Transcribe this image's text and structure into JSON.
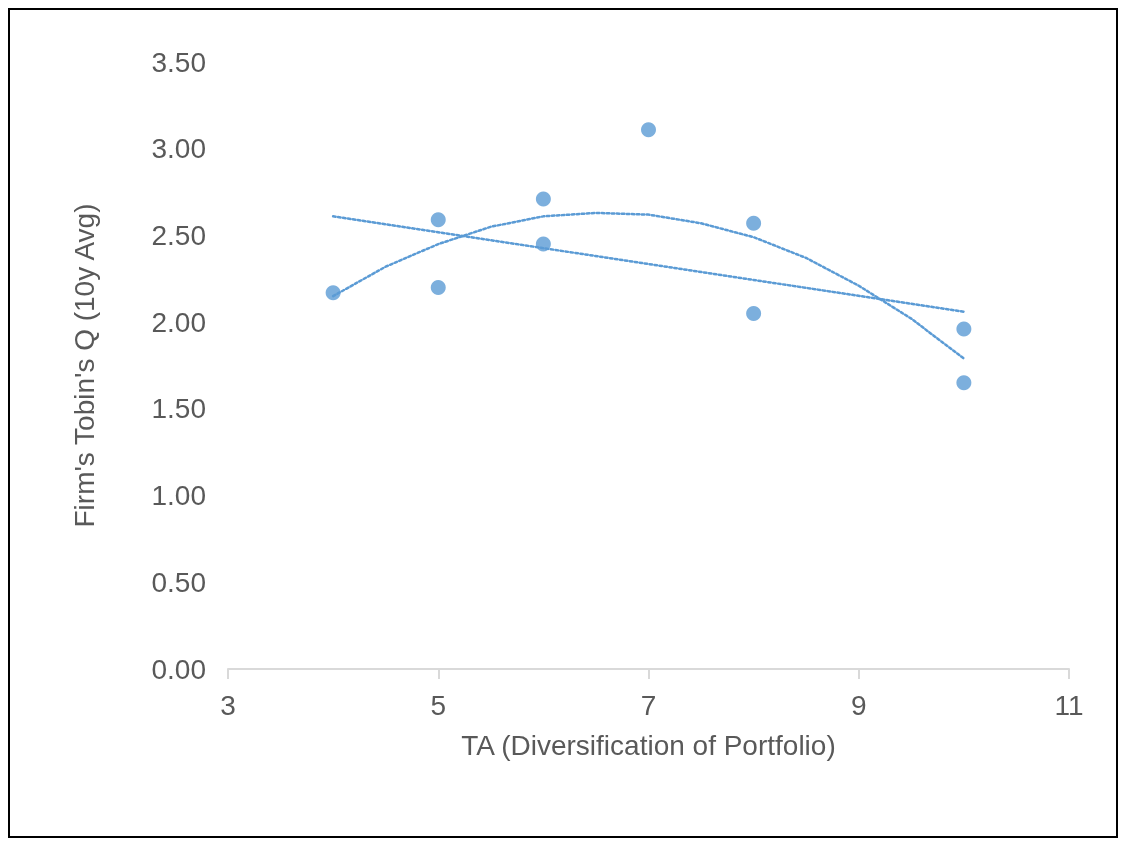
{
  "chart_data": {
    "type": "scatter",
    "xlabel": "TA (Diversification of Portfolio)",
    "ylabel": "Firm's Tobin's Q (10y Avg)",
    "xlim": [
      3,
      11
    ],
    "xticks": [
      3,
      5,
      7,
      9,
      11
    ],
    "ylim": [
      0,
      3.5
    ],
    "yticks": [
      {
        "value": 0,
        "label": "0.00"
      },
      {
        "value": 0.5,
        "label": "0.50"
      },
      {
        "value": 1,
        "label": "1.00"
      },
      {
        "value": 1.5,
        "label": "1.50"
      },
      {
        "value": 2,
        "label": "2.00"
      },
      {
        "value": 2.5,
        "label": "2.50"
      },
      {
        "value": 3,
        "label": "3.00"
      },
      {
        "value": 3.5,
        "label": "3.50"
      }
    ],
    "grid": false,
    "marker": "circle",
    "series": [
      {
        "color": "#5b9bd5",
        "x": [
          4,
          5,
          5,
          6,
          6,
          7,
          8,
          8,
          10,
          10
        ],
        "values": [
          2.17,
          2.59,
          2.2,
          2.71,
          2.45,
          3.11,
          2.57,
          2.05,
          1.96,
          1.65
        ]
      },
      {
        "type": "line",
        "color": "#5b9bd5",
        "line_style": "dotted",
        "marker": "none",
        "x": [
          4,
          10
        ],
        "values": [
          2.61,
          2.06
        ]
      },
      {
        "type": "line",
        "color": "#5b9bd5",
        "line_style": "dotted",
        "marker": "none",
        "x": [
          4,
          4.5,
          5,
          5.5,
          6,
          6.5,
          7,
          7.5,
          8,
          8.5,
          9,
          9.5,
          10
        ],
        "values": [
          2.15,
          2.32,
          2.45,
          2.55,
          2.61,
          2.63,
          2.62,
          2.57,
          2.49,
          2.37,
          2.21,
          2.02,
          1.79
        ]
      }
    ]
  }
}
